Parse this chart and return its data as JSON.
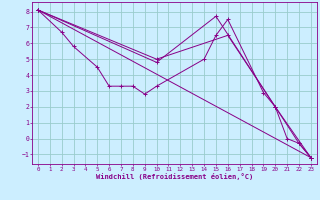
{
  "bg_color": "#cceeff",
  "line_color": "#880088",
  "grid_color": "#99cccc",
  "spine_color": "#880088",
  "xlabel": "Windchill (Refroidissement éolien,°C)",
  "xlabel_color": "#880088",
  "tick_color": "#880088",
  "xlim": [
    -0.5,
    23.5
  ],
  "ylim": [
    -1.6,
    8.6
  ],
  "yticks": [
    -1,
    0,
    1,
    2,
    3,
    4,
    5,
    6,
    7,
    8
  ],
  "xticks": [
    0,
    1,
    2,
    3,
    4,
    5,
    6,
    7,
    8,
    9,
    10,
    11,
    12,
    13,
    14,
    15,
    16,
    17,
    18,
    19,
    20,
    21,
    22,
    23
  ],
  "line1_x": [
    0,
    2,
    3,
    5,
    6,
    7,
    8,
    9,
    10,
    14,
    15,
    16,
    19,
    20,
    21,
    22,
    23
  ],
  "line1_y": [
    8.1,
    6.7,
    5.8,
    4.5,
    3.3,
    3.3,
    3.3,
    2.8,
    3.3,
    5.0,
    6.5,
    7.5,
    2.9,
    2.0,
    0.0,
    -0.3,
    -1.2
  ],
  "line2_x": [
    0,
    10,
    16,
    20,
    22,
    23
  ],
  "line2_y": [
    8.1,
    5.0,
    6.5,
    2.0,
    -0.3,
    -1.2
  ],
  "line3_x": [
    0,
    10,
    15,
    20,
    23
  ],
  "line3_y": [
    8.1,
    4.8,
    7.7,
    2.0,
    -1.2
  ],
  "line4_x": [
    0,
    23
  ],
  "line4_y": [
    8.1,
    -1.2
  ],
  "tick_fontsize": 4.2,
  "xlabel_fontsize": 5.0,
  "marker_size": 2.5,
  "linewidth": 0.7
}
